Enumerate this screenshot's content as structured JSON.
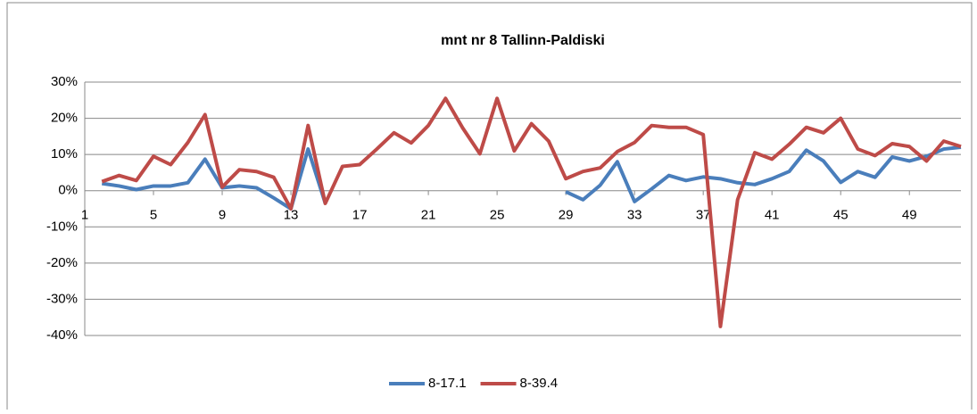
{
  "chart_data": {
    "type": "line",
    "title": "mnt nr 8 Tallinn-Paldiski",
    "categories": [
      1,
      null,
      null,
      null,
      5,
      null,
      null,
      null,
      9,
      null,
      null,
      null,
      13,
      null,
      null,
      null,
      17,
      null,
      null,
      null,
      21,
      null,
      null,
      null,
      25,
      null,
      null,
      null,
      29,
      null,
      null,
      null,
      33,
      null,
      null,
      null,
      37,
      null,
      null,
      null,
      41,
      null,
      null,
      null,
      45,
      null,
      null,
      null,
      49,
      null,
      null,
      null
    ],
    "series": [
      {
        "name": "8-17.1",
        "color": "#4a7ebb",
        "values": [
          null,
          2,
          1.3,
          0.3,
          1.3,
          1.3,
          2.2,
          8.7,
          0.8,
          1.3,
          0.8,
          -2,
          -5,
          11.5,
          -3.5,
          null,
          null,
          null,
          null,
          null,
          null,
          null,
          null,
          null,
          null,
          null,
          null,
          null,
          -0.3,
          -2.5,
          1.5,
          8,
          -3,
          0.5,
          4.2,
          2.8,
          3.8,
          3.3,
          2.2,
          1.7,
          3.3,
          5.3,
          11.2,
          8.2,
          2.3,
          5.3,
          3.7,
          9.3,
          8.2,
          9.5,
          11.5,
          12
        ]
      },
      {
        "name": "8-39.4",
        "color": "#be4b48",
        "values": [
          null,
          2.5,
          4.2,
          2.8,
          9.5,
          7.2,
          13.3,
          21,
          1,
          5.8,
          5.3,
          3.7,
          -5,
          18,
          -3.5,
          6.7,
          7.2,
          11.5,
          16,
          13.2,
          18,
          25.5,
          17.3,
          10.2,
          25.5,
          11,
          18.5,
          13.7,
          3.3,
          5.3,
          6.3,
          10.8,
          13.3,
          18,
          17.5,
          17.5,
          15.5,
          -37.5,
          -2.5,
          10.5,
          8.7,
          12.8,
          17.5,
          16,
          20,
          11.5,
          9.7,
          13,
          12.2,
          8.2,
          13.7,
          12.2
        ]
      }
    ],
    "ylim": [
      -40,
      30
    ],
    "yticks": [
      {
        "value": -40,
        "label": "-40%"
      },
      {
        "value": -30,
        "label": "-30%"
      },
      {
        "value": -20,
        "label": "-20%"
      },
      {
        "value": -10,
        "label": "-10%"
      },
      {
        "value": 0,
        "label": "0%"
      },
      {
        "value": 10,
        "label": "10%"
      },
      {
        "value": 20,
        "label": "20%"
      },
      {
        "value": 30,
        "label": "30%"
      }
    ],
    "grid": true,
    "legend": "bottom"
  }
}
